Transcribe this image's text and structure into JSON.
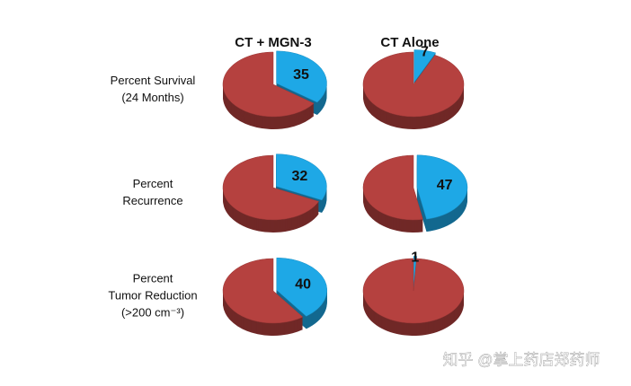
{
  "columns": [
    "CT + MGN-3",
    "CT Alone"
  ],
  "rows": [
    [
      "Percent Survival",
      "(24 Months)"
    ],
    [
      "Percent",
      "Recurrence"
    ],
    [
      "Percent",
      "Tumor Reduction",
      "(>200 cm⁻³)"
    ]
  ],
  "watermark": "知乎 @掌上药店郑药师",
  "chart_data": [
    {
      "type": "pie",
      "values": [
        35,
        65
      ],
      "colors": [
        "#1ea8e6",
        "#b5413f"
      ]
    },
    {
      "type": "pie",
      "values": [
        7,
        93
      ],
      "colors": [
        "#1ea8e6",
        "#b5413f"
      ]
    },
    {
      "type": "pie",
      "values": [
        32,
        68
      ],
      "colors": [
        "#1ea8e6",
        "#b5413f"
      ]
    },
    {
      "type": "pie",
      "values": [
        47,
        53
      ],
      "colors": [
        "#1ea8e6",
        "#b5413f"
      ]
    },
    {
      "type": "pie",
      "values": [
        40,
        60
      ],
      "colors": [
        "#1ea8e6",
        "#b5413f"
      ]
    },
    {
      "type": "pie",
      "values": [
        1,
        99
      ],
      "colors": [
        "#1ea8e6",
        "#b5413f"
      ]
    }
  ]
}
